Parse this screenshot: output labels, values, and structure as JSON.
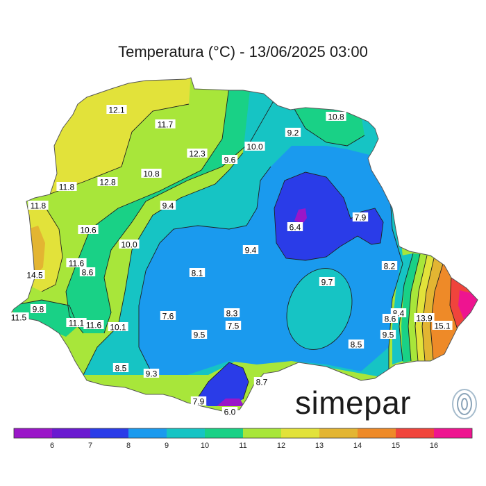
{
  "title": "Temperatura (°C) - 13/06/2025 03:00",
  "brand": {
    "name": "simepar",
    "logo_icon": "signal-waves-icon"
  },
  "legend": {
    "ticks": [
      "6",
      "7",
      "8",
      "9",
      "10",
      "11",
      "12",
      "13",
      "14",
      "15",
      "16"
    ],
    "colors": [
      "#9a16c8",
      "#6a1ad0",
      "#2a3ce8",
      "#1a9aee",
      "#16c4c4",
      "#19d186",
      "#a8e63a",
      "#e2e23a",
      "#e3b532",
      "#ee8a28",
      "#f0443c",
      "#ee1490"
    ]
  },
  "station_labels": [
    {
      "text": "12.1"
    },
    {
      "text": "11.7"
    },
    {
      "text": "12.3"
    },
    {
      "text": "9.6"
    },
    {
      "text": "10.0"
    },
    {
      "text": "9.2"
    },
    {
      "text": "10.8"
    },
    {
      "text": "12.8"
    },
    {
      "text": "10.8"
    },
    {
      "text": "11.8"
    },
    {
      "text": "11.8"
    },
    {
      "text": "9.4"
    },
    {
      "text": "6.4"
    },
    {
      "text": "7.9"
    },
    {
      "text": "10.6"
    },
    {
      "text": "10.0"
    },
    {
      "text": "9.4"
    },
    {
      "text": "11.6"
    },
    {
      "text": "8.6"
    },
    {
      "text": "14.5"
    },
    {
      "text": "8.1"
    },
    {
      "text": "8.2"
    },
    {
      "text": "9.7"
    },
    {
      "text": "9.8"
    },
    {
      "text": "11.5"
    },
    {
      "text": "11.1"
    },
    {
      "text": "11.6"
    },
    {
      "text": "10.1"
    },
    {
      "text": "7.6"
    },
    {
      "text": "8.3"
    },
    {
      "text": "7.5"
    },
    {
      "text": "9.5"
    },
    {
      "text": "8.4"
    },
    {
      "text": "8.6"
    },
    {
      "text": "13.9"
    },
    {
      "text": "15.1"
    },
    {
      "text": "9.5"
    },
    {
      "text": "8.5"
    },
    {
      "text": "8.5"
    },
    {
      "text": "9.3"
    },
    {
      "text": "8.7"
    },
    {
      "text": "7.9"
    },
    {
      "text": "6.0"
    }
  ]
}
